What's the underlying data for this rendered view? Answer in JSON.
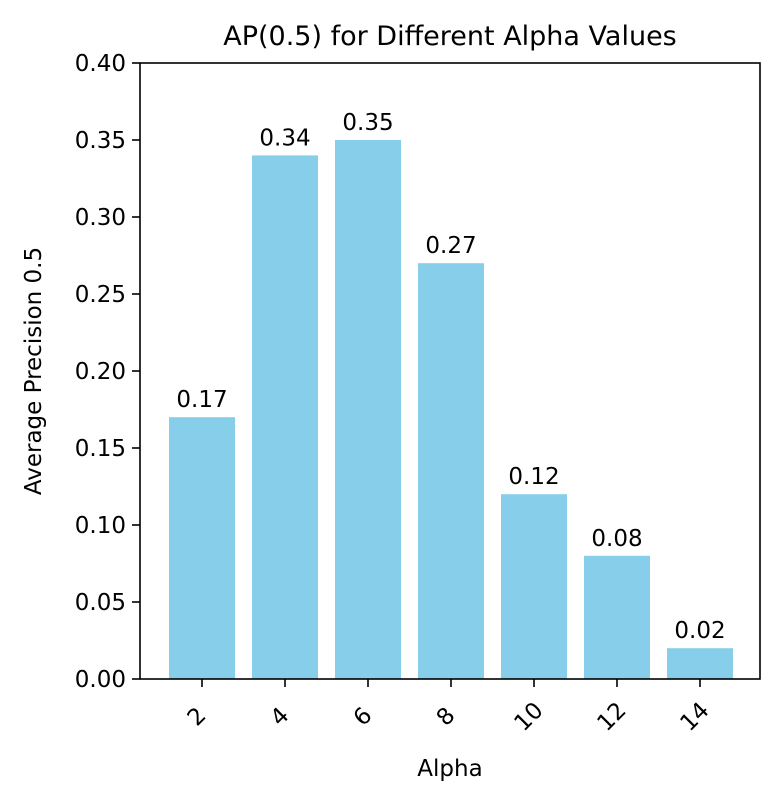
{
  "chart_data": {
    "type": "bar",
    "title": "AP(0.5) for Different Alpha Values",
    "xlabel": "Alpha",
    "ylabel": "Average Precision 0.5",
    "categories": [
      "2",
      "4",
      "6",
      "8",
      "10",
      "12",
      "14"
    ],
    "values": [
      0.17,
      0.34,
      0.35,
      0.27,
      0.12,
      0.08,
      0.02
    ],
    "data_labels": [
      "0.17",
      "0.34",
      "0.35",
      "0.27",
      "0.12",
      "0.08",
      "0.02"
    ],
    "ylim": [
      0,
      0.4
    ],
    "yticks": [
      0.0,
      0.05,
      0.1,
      0.15,
      0.2,
      0.25,
      0.3,
      0.35,
      0.4
    ],
    "ytick_labels": [
      "0.00",
      "0.05",
      "0.10",
      "0.15",
      "0.20",
      "0.25",
      "0.30",
      "0.35",
      "0.40"
    ],
    "xtick_rotation_deg": 45,
    "grid": false,
    "bar_color": "#87CEEB"
  }
}
